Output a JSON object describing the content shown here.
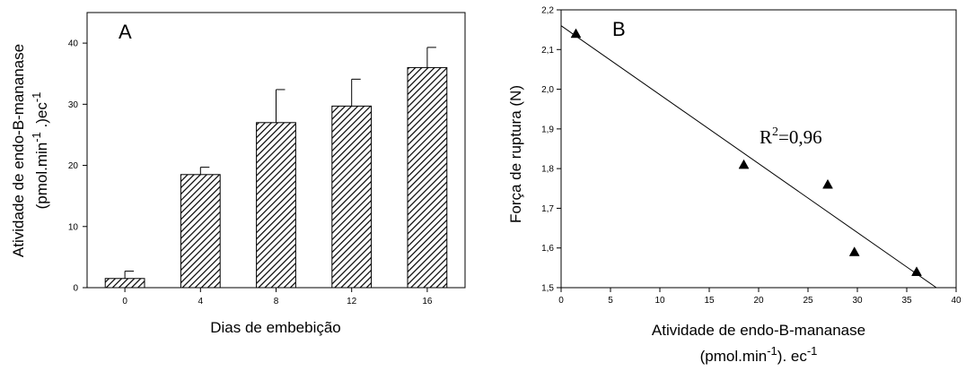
{
  "chart_data": [
    {
      "type": "bar",
      "panel_label": "A",
      "categories": [
        "0",
        "4",
        "8",
        "12",
        "16"
      ],
      "values": [
        1.5,
        18.5,
        27.0,
        29.7,
        36.0
      ],
      "error_upper": [
        1.2,
        1.2,
        5.4,
        4.4,
        3.3
      ],
      "xlabel": "Dias de embebição",
      "ylabel_line1": "Atividade de endo-B-mananase",
      "ylabel_line2_pre": "(pmol.min",
      "ylabel_line2_sup": "-1",
      "ylabel_line2_mid": " .)ec",
      "ylabel_line2_sup2": "-1",
      "ylim": [
        0,
        45
      ],
      "yticks": [
        "0",
        "10",
        "20",
        "30",
        "40"
      ],
      "bar_fill": "hatched",
      "grid": false
    },
    {
      "type": "scatter",
      "panel_label": "B",
      "points": [
        {
          "x": 1.5,
          "y": 2.14
        },
        {
          "x": 18.5,
          "y": 1.81
        },
        {
          "x": 27.0,
          "y": 1.76
        },
        {
          "x": 29.7,
          "y": 1.59
        },
        {
          "x": 36.0,
          "y": 1.54
        }
      ],
      "fit_line": {
        "x": [
          0,
          38
        ],
        "y": [
          2.16,
          1.5
        ]
      },
      "annotation_r": "R",
      "annotation_sup": "2",
      "annotation_val": "=0,96",
      "xlabel_line1": "Atividade de endo-B-mananase",
      "xlabel_line2_pre": "(pmol.min",
      "xlabel_line2_sup": "-1",
      "xlabel_line2_post": "). ec",
      "xlabel_line2_sup2": "-1",
      "ylabel": "Força de ruptura (N)",
      "xlim": [
        0,
        40
      ],
      "ylim": [
        1.5,
        2.2
      ],
      "xticks": [
        "0",
        "5",
        "10",
        "15",
        "20",
        "25",
        "30",
        "35",
        "40"
      ],
      "yticks": [
        "1,5",
        "1,6",
        "1,7",
        "1,8",
        "1,9",
        "2,0",
        "2,1",
        "2,2"
      ],
      "marker": "triangle",
      "grid": false
    }
  ]
}
